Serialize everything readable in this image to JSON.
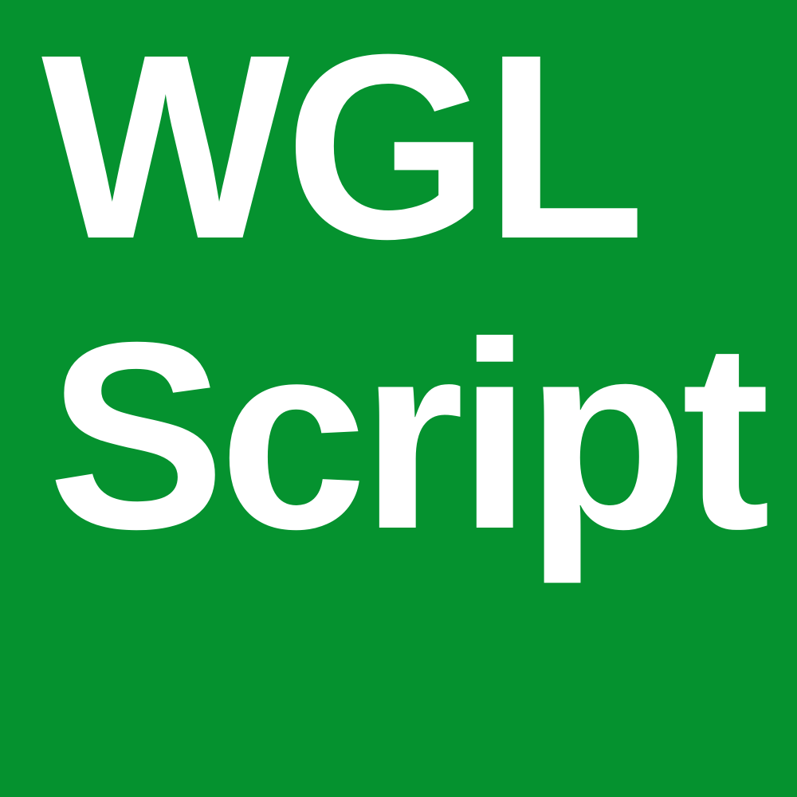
{
  "logo": {
    "line_1": "WGL",
    "line_2": "Script",
    "background_color": "#05922f",
    "text_color": "#ffffff"
  }
}
